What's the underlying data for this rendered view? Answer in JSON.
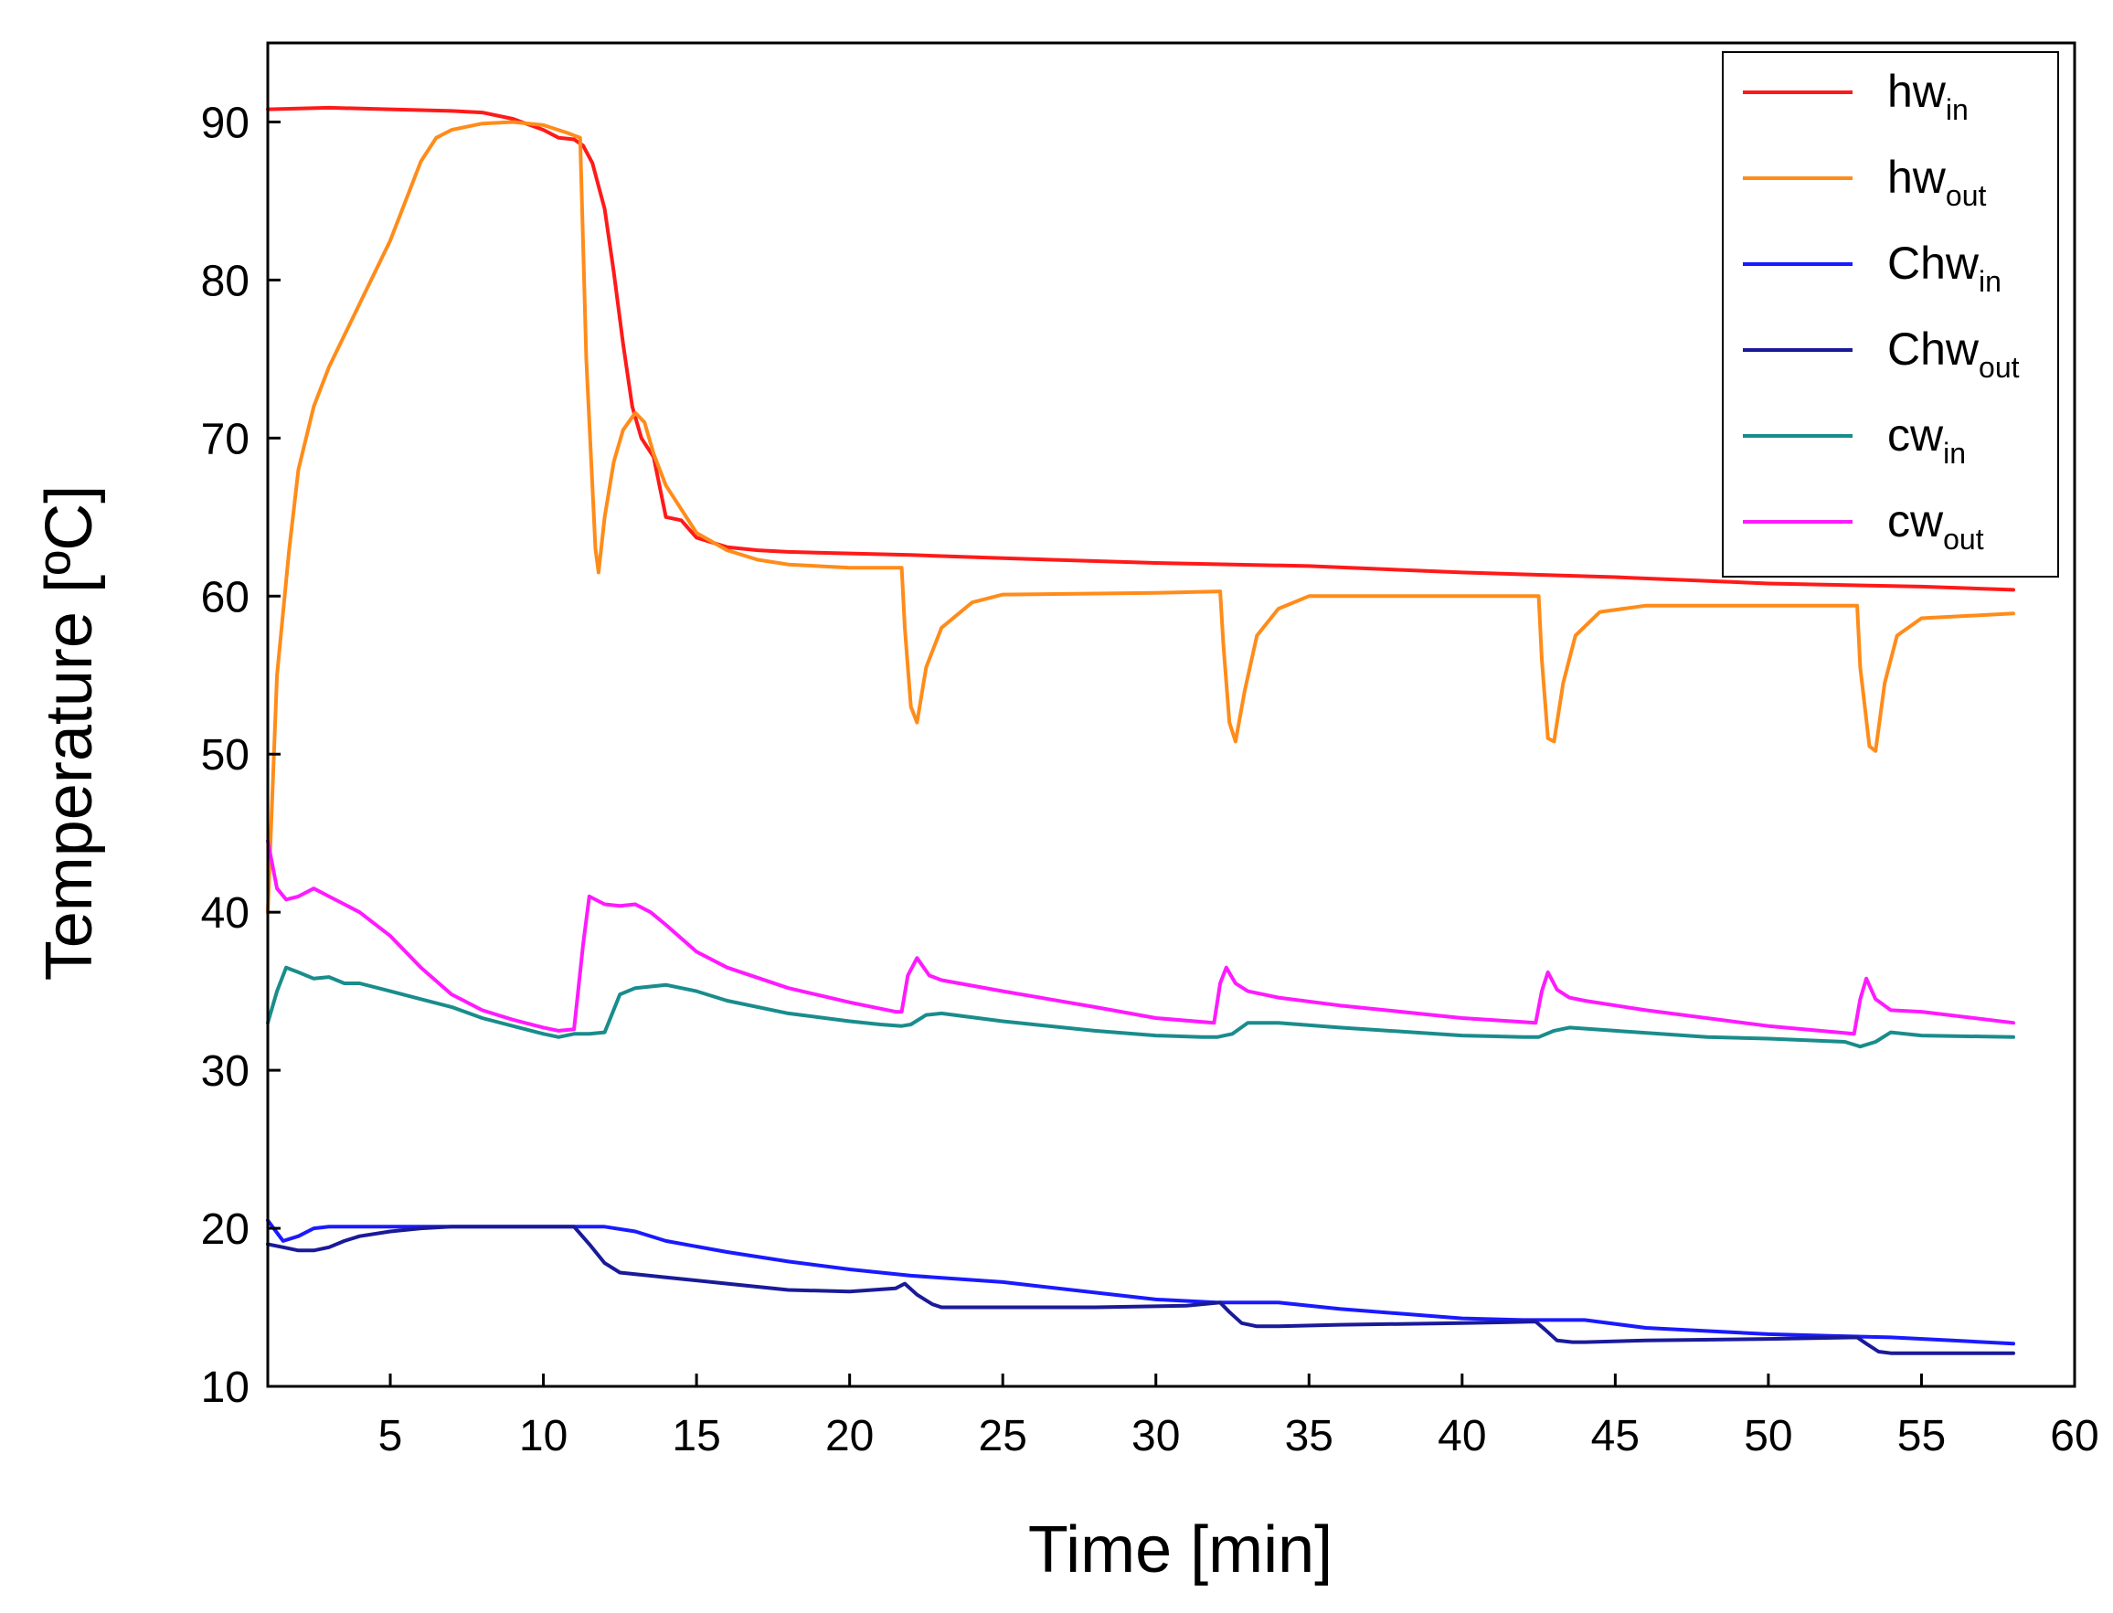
{
  "chart_data": {
    "type": "line",
    "title": "",
    "xlabel": "Time [min]",
    "ylabel": "Temperature [ºC]",
    "xlim": [
      1,
      60
    ],
    "ylim": [
      10,
      95
    ],
    "xticks": [
      5,
      10,
      15,
      20,
      25,
      30,
      35,
      40,
      45,
      50,
      55,
      60
    ],
    "yticks": [
      10,
      20,
      30,
      40,
      50,
      60,
      70,
      80,
      90
    ],
    "legend_position": "top-right",
    "series": [
      {
        "name": "hw",
        "subscript": "in",
        "color": "#ff1a1a",
        "x": [
          1,
          3,
          5,
          7,
          8,
          9,
          10,
          10.5,
          11,
          11.3,
          11.6,
          12,
          12.3,
          12.6,
          12.9,
          13.2,
          13.6,
          14,
          14.5,
          15,
          16,
          17,
          18,
          20,
          22,
          25,
          30,
          35,
          40,
          45,
          50,
          55,
          58
        ],
        "values": [
          90.8,
          90.9,
          90.8,
          90.7,
          90.6,
          90.2,
          89.5,
          89,
          88.9,
          88.5,
          87.4,
          84.5,
          80.5,
          76,
          72,
          70,
          68.8,
          65,
          64.8,
          63.7,
          63.1,
          62.9,
          62.8,
          62.7,
          62.6,
          62.4,
          62.1,
          61.9,
          61.5,
          61.2,
          60.8,
          60.6,
          60.4
        ]
      },
      {
        "name": "hw",
        "subscript": "out",
        "color": "#ff8c1a",
        "x": [
          1,
          1.3,
          1.7,
          2,
          2.5,
          3,
          4,
          5,
          6,
          6.5,
          7,
          8,
          9,
          10,
          10.8,
          11.2,
          11.4,
          11.7,
          11.8,
          12,
          12.3,
          12.6,
          13,
          13.3,
          13.6,
          14,
          14.5,
          15,
          16,
          17,
          18,
          20,
          21.7,
          21.8,
          22,
          22.2,
          22.5,
          23,
          24,
          25,
          30,
          32.1,
          32.2,
          32.4,
          32.6,
          32.9,
          33.3,
          34,
          35,
          42.5,
          42.6,
          42.8,
          43,
          43.3,
          43.7,
          44.5,
          46,
          52.9,
          53,
          53.3,
          53.5,
          53.8,
          54.2,
          55,
          58
        ],
        "values": [
          40,
          55,
          63,
          68,
          72,
          74.5,
          78.5,
          82.5,
          87.5,
          89,
          89.5,
          89.9,
          90,
          89.8,
          89.3,
          89,
          75,
          63,
          61.5,
          65,
          68.5,
          70.5,
          71.6,
          71,
          69,
          67,
          65.5,
          64,
          62.9,
          62.3,
          62,
          61.8,
          61.8,
          58,
          53,
          52,
          55.5,
          58,
          59.6,
          60.1,
          60.2,
          60.3,
          57,
          52,
          50.8,
          54,
          57.5,
          59.2,
          60,
          60,
          56,
          51,
          50.8,
          54.5,
          57.5,
          59,
          59.4,
          59.4,
          55.5,
          50.5,
          50.2,
          54.5,
          57.5,
          58.6,
          58.9
        ]
      },
      {
        "name": "Chw",
        "subscript": "in",
        "color": "#1a1aff",
        "x": [
          1,
          1.5,
          2,
          2.5,
          3,
          5,
          7,
          10,
          11,
          12,
          13,
          14,
          16,
          18,
          20,
          22,
          25,
          30,
          32,
          34,
          36,
          40,
          42,
          44,
          46,
          50,
          52,
          54,
          56,
          58
        ],
        "values": [
          20.5,
          19.2,
          19.5,
          20,
          20.1,
          20.1,
          20.1,
          20.1,
          20.1,
          20.1,
          19.8,
          19.2,
          18.5,
          17.9,
          17.4,
          17,
          16.6,
          15.5,
          15.3,
          15.3,
          14.9,
          14.3,
          14.2,
          14.2,
          13.7,
          13.3,
          13.2,
          13.1,
          12.9,
          12.7
        ]
      },
      {
        "name": "Chw",
        "subscript": "out",
        "color": "#1a1a99",
        "x": [
          1,
          1.5,
          2,
          2.5,
          3,
          3.5,
          4,
          5,
          6,
          7,
          8,
          10,
          11,
          11.5,
          12,
          12.5,
          13,
          14,
          16,
          18,
          20,
          21.5,
          21.8,
          22.2,
          22.7,
          23,
          25,
          28,
          31,
          32.1,
          32.4,
          32.8,
          33.3,
          34,
          36,
          40,
          42.4,
          42.7,
          43.1,
          43.6,
          44,
          46,
          50,
          52.9,
          53.2,
          53.6,
          54,
          56,
          58
        ],
        "values": [
          19,
          18.8,
          18.6,
          18.6,
          18.8,
          19.2,
          19.5,
          19.8,
          20,
          20.1,
          20.1,
          20.1,
          20.1,
          19,
          17.8,
          17.2,
          17.1,
          16.9,
          16.5,
          16.1,
          16,
          16.2,
          16.5,
          15.8,
          15.2,
          15,
          15,
          15,
          15.1,
          15.3,
          14.7,
          14,
          13.8,
          13.8,
          13.9,
          14,
          14.1,
          13.6,
          12.9,
          12.8,
          12.8,
          12.9,
          13,
          13.1,
          12.7,
          12.2,
          12.1,
          12.1,
          12.1
        ]
      },
      {
        "name": "cw",
        "subscript": "in",
        "color": "#1a8c8c",
        "x": [
          1,
          1.3,
          1.6,
          2,
          2.5,
          3,
          3.5,
          4,
          5,
          6,
          7,
          8,
          9,
          10,
          10.5,
          11,
          11.5,
          12,
          12.5,
          13,
          14,
          15,
          16,
          18,
          20,
          21,
          21.7,
          22,
          22.5,
          23,
          25,
          28,
          30,
          31.5,
          32,
          32.5,
          33,
          34,
          36,
          40,
          42,
          42.5,
          43,
          43.5,
          45,
          48,
          50,
          52.5,
          53,
          53.5,
          54,
          55,
          58
        ],
        "values": [
          33,
          35,
          36.5,
          36.2,
          35.8,
          35.9,
          35.5,
          35.5,
          35,
          34.5,
          34,
          33.3,
          32.8,
          32.3,
          32.1,
          32.3,
          32.3,
          32.4,
          34.8,
          35.2,
          35.4,
          35,
          34.4,
          33.6,
          33.1,
          32.9,
          32.8,
          32.9,
          33.5,
          33.6,
          33.1,
          32.5,
          32.2,
          32.1,
          32.1,
          32.3,
          33,
          33,
          32.7,
          32.2,
          32.1,
          32.1,
          32.5,
          32.7,
          32.5,
          32.1,
          32,
          31.8,
          31.5,
          31.8,
          32.4,
          32.2,
          32.1
        ]
      },
      {
        "name": "cw",
        "subscript": "out",
        "color": "#ff1aff",
        "x": [
          1,
          1.3,
          1.6,
          2,
          2.5,
          3,
          3.5,
          4,
          5,
          6,
          7,
          8,
          9,
          10,
          10.5,
          11,
          11.3,
          11.5,
          12,
          12.5,
          13,
          13.5,
          14,
          15,
          16,
          18,
          20,
          21.5,
          21.7,
          21.9,
          22.2,
          22.6,
          23,
          25,
          28,
          30,
          31.9,
          32.1,
          32.3,
          32.6,
          33,
          34,
          36,
          40,
          42.4,
          42.6,
          42.8,
          43.1,
          43.5,
          44,
          46,
          50,
          52.8,
          53,
          53.2,
          53.5,
          54,
          55,
          58
        ],
        "values": [
          44.5,
          41.5,
          40.8,
          41,
          41.5,
          41,
          40.5,
          40,
          38.5,
          36.5,
          34.8,
          33.8,
          33.2,
          32.7,
          32.5,
          32.6,
          38,
          41,
          40.5,
          40.4,
          40.5,
          40,
          39.2,
          37.5,
          36.5,
          35.2,
          34.3,
          33.7,
          33.7,
          36,
          37.1,
          36,
          35.7,
          35,
          34,
          33.3,
          33,
          35.5,
          36.5,
          35.5,
          35,
          34.6,
          34.1,
          33.3,
          33,
          35,
          36.2,
          35.1,
          34.6,
          34.4,
          33.8,
          32.8,
          32.3,
          34.5,
          35.8,
          34.5,
          33.8,
          33.7,
          33
        ]
      }
    ]
  }
}
